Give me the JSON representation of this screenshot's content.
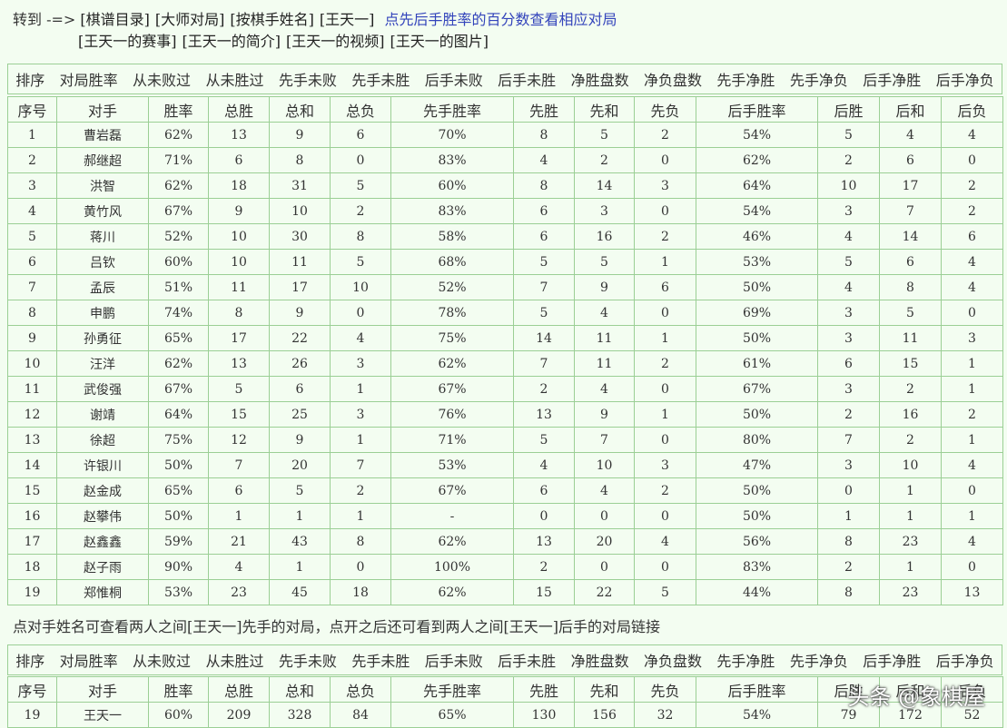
{
  "nav": {
    "prefix": "转到 -=>",
    "links": [
      "[棋谱目录]",
      "[大师对局]",
      "[按棋手姓名]",
      "[王天一]"
    ],
    "hint": "点先后手胜率的百分数查看相应对局",
    "links2": [
      "[王天一的赛事]",
      "[王天一的简介]",
      "[王天一的视频]",
      "[王天一的图片]"
    ]
  },
  "sort_bar": [
    "排序",
    "对局胜率",
    "从未败过",
    "从未胜过",
    "先手未败",
    "先手未胜",
    "后手未败",
    "后手未胜",
    "净胜盘数",
    "净负盘数",
    "先手净胜",
    "先手净负",
    "后手净胜",
    "后手净负"
  ],
  "table": {
    "header": [
      "序号",
      "对手",
      "胜率",
      "总胜",
      "总和",
      "总负",
      "先手胜率",
      "先胜",
      "先和",
      "先负",
      "后手胜率",
      "后胜",
      "后和",
      "后负"
    ],
    "rows": [
      [
        "1",
        "曹岩磊",
        "62%",
        "13",
        "9",
        "6",
        "70%",
        "8",
        "5",
        "2",
        "54%",
        "5",
        "4",
        "4"
      ],
      [
        "2",
        "郝继超",
        "71%",
        "6",
        "8",
        "0",
        "83%",
        "4",
        "2",
        "0",
        "62%",
        "2",
        "6",
        "0"
      ],
      [
        "3",
        "洪智",
        "62%",
        "18",
        "31",
        "5",
        "60%",
        "8",
        "14",
        "3",
        "64%",
        "10",
        "17",
        "2"
      ],
      [
        "4",
        "黄竹风",
        "67%",
        "9",
        "10",
        "2",
        "83%",
        "6",
        "3",
        "0",
        "54%",
        "3",
        "7",
        "2"
      ],
      [
        "5",
        "蒋川",
        "52%",
        "10",
        "30",
        "8",
        "58%",
        "6",
        "16",
        "2",
        "46%",
        "4",
        "14",
        "6"
      ],
      [
        "6",
        "吕钦",
        "60%",
        "10",
        "11",
        "5",
        "68%",
        "5",
        "5",
        "1",
        "53%",
        "5",
        "6",
        "4"
      ],
      [
        "7",
        "孟辰",
        "51%",
        "11",
        "17",
        "10",
        "52%",
        "7",
        "9",
        "6",
        "50%",
        "4",
        "8",
        "4"
      ],
      [
        "8",
        "申鹏",
        "74%",
        "8",
        "9",
        "0",
        "78%",
        "5",
        "4",
        "0",
        "69%",
        "3",
        "5",
        "0"
      ],
      [
        "9",
        "孙勇征",
        "65%",
        "17",
        "22",
        "4",
        "75%",
        "14",
        "11",
        "1",
        "50%",
        "3",
        "11",
        "3"
      ],
      [
        "10",
        "汪洋",
        "62%",
        "13",
        "26",
        "3",
        "62%",
        "7",
        "11",
        "2",
        "61%",
        "6",
        "15",
        "1"
      ],
      [
        "11",
        "武俊强",
        "67%",
        "5",
        "6",
        "1",
        "67%",
        "2",
        "4",
        "0",
        "67%",
        "3",
        "2",
        "1"
      ],
      [
        "12",
        "谢靖",
        "64%",
        "15",
        "25",
        "3",
        "76%",
        "13",
        "9",
        "1",
        "50%",
        "2",
        "16",
        "2"
      ],
      [
        "13",
        "徐超",
        "75%",
        "12",
        "9",
        "1",
        "71%",
        "5",
        "7",
        "0",
        "80%",
        "7",
        "2",
        "1"
      ],
      [
        "14",
        "许银川",
        "50%",
        "7",
        "20",
        "7",
        "53%",
        "4",
        "10",
        "3",
        "47%",
        "3",
        "10",
        "4"
      ],
      [
        "15",
        "赵金成",
        "65%",
        "6",
        "5",
        "2",
        "67%",
        "6",
        "4",
        "2",
        "50%",
        "0",
        "1",
        "0"
      ],
      [
        "16",
        "赵攀伟",
        "50%",
        "1",
        "1",
        "1",
        "-",
        "0",
        "0",
        "0",
        "50%",
        "1",
        "1",
        "1"
      ],
      [
        "17",
        "赵鑫鑫",
        "59%",
        "21",
        "43",
        "8",
        "62%",
        "13",
        "20",
        "4",
        "56%",
        "8",
        "23",
        "4"
      ],
      [
        "18",
        "赵子雨",
        "90%",
        "4",
        "1",
        "0",
        "100%",
        "2",
        "0",
        "0",
        "83%",
        "2",
        "1",
        "0"
      ],
      [
        "19",
        "郑惟桐",
        "53%",
        "23",
        "45",
        "18",
        "62%",
        "15",
        "22",
        "5",
        "44%",
        "8",
        "23",
        "13"
      ]
    ]
  },
  "note": "点对手姓名可查看两人之间[王天一]先手的对局，点开之后还可看到两人之间[王天一]后手的对局链接",
  "summary": {
    "rows": [
      [
        "19",
        "王天一",
        "60%",
        "209",
        "328",
        "84",
        "65%",
        "130",
        "156",
        "32",
        "54%",
        "79",
        "172",
        "52"
      ]
    ]
  },
  "watermark": "头条 @象棋屋"
}
